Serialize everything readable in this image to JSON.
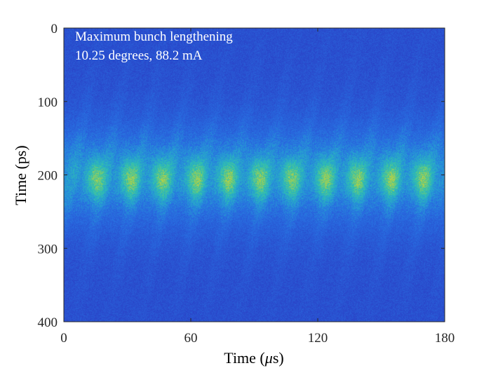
{
  "chart_data": {
    "type": "heatmap",
    "title": "",
    "annotations": [
      "Maximum bunch lengthening",
      "10.25 degrees, 88.2 mA"
    ],
    "xlabel": "Time (μs)",
    "ylabel": "Time (ps)",
    "xlim": [
      0,
      180
    ],
    "ylim": [
      0,
      400
    ],
    "y_reversed": true,
    "x_ticks": [
      0,
      60,
      120,
      180
    ],
    "y_ticks": [
      0,
      100,
      200,
      300,
      400
    ],
    "x_tick_labels": [
      "0",
      "60",
      "120",
      "180"
    ],
    "y_tick_labels": [
      "0",
      "100",
      "200",
      "300",
      "400"
    ],
    "colormap": "parula",
    "grid": false,
    "bunch_centroid_ps": 200,
    "bright_cluster_centers_us": [
      15,
      31,
      46,
      62,
      77,
      92,
      107,
      123,
      138,
      154,
      169
    ],
    "oscillation_period_us": 15.3
  },
  "colors": {
    "low": "#2a44c8",
    "mid": "#27b0c8",
    "high": "#e6d22a",
    "annotation_text": "#ffffff",
    "axis": "#262626"
  }
}
